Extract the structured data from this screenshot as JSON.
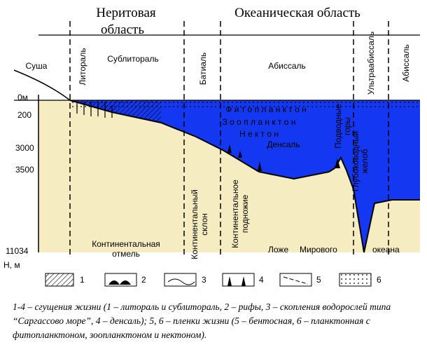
{
  "header": {
    "neritic": [
      "Неритовая",
      "область"
    ],
    "oceanic": "Океаническая область"
  },
  "zones": {
    "land": "Суша",
    "littoral": "Литораль",
    "sublittoral": "Сублитораль",
    "bathyal": "Батиаль",
    "abyssal": "Абиссаль",
    "ultraabyssal": "Ультраабиссаль",
    "abyssal2": "Абиссаль"
  },
  "depths": [
    "0м",
    "200",
    "3000",
    "3500",
    "11034",
    "Н, м"
  ],
  "water": {
    "phyto": "Ф и т о п л а н к т о н",
    "zoo": "З о о п л а н к т о н",
    "nekton": "Н е к т о н",
    "densal": "Денсаль",
    "seamounts": [
      "Подводные",
      "горы"
    ],
    "trench": [
      "Глубоководный",
      "желоб"
    ]
  },
  "bottom": {
    "shelf": [
      "Континентальная",
      "отмель"
    ],
    "slope": [
      "Континентальный",
      "склон"
    ],
    "rise": [
      "Континентальное",
      "подножие"
    ],
    "floor": [
      "Ложе",
      "Мирового",
      "океана"
    ]
  },
  "legend": [
    "1",
    "2",
    "3",
    "4",
    "5",
    "6"
  ],
  "caption": "1-4 – сгущения жизни (1 – литораль и сублитораль, 2 – рифы, 3 – скопления водорослей типа “Саргассово море”, 4 – денсаль); 5, 6 – пленки жизни (5 – бентосная, 6 – планктонная с фитопланктоном, зоопланктоном и нектоном)."
}
